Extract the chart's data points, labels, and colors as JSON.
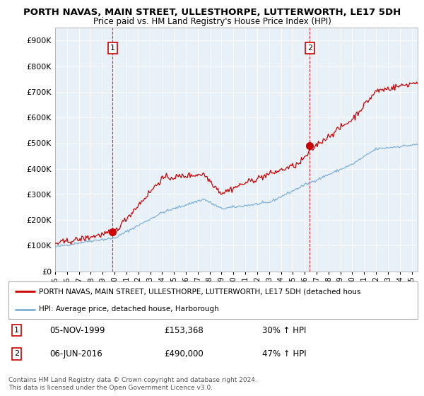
{
  "title": "PORTH NAVAS, MAIN STREET, ULLESTHORPE, LUTTERWORTH, LE17 5DH",
  "subtitle": "Price paid vs. HM Land Registry's House Price Index (HPI)",
  "ytick_values": [
    0,
    100000,
    200000,
    300000,
    400000,
    500000,
    600000,
    700000,
    800000,
    900000
  ],
  "ylim": [
    0,
    950000
  ],
  "legend_line1": "PORTH NAVAS, MAIN STREET, ULLESTHORPE, LUTTERWORTH, LE17 5DH (detached hous",
  "legend_line2": "HPI: Average price, detached house, Harborough",
  "annotation1_date": "05-NOV-1999",
  "annotation1_price": "£153,368",
  "annotation1_hpi": "30% ↑ HPI",
  "annotation2_date": "06-JUN-2016",
  "annotation2_price": "£490,000",
  "annotation2_hpi": "47% ↑ HPI",
  "footer": "Contains HM Land Registry data © Crown copyright and database right 2024.\nThis data is licensed under the Open Government Licence v3.0.",
  "red_color": "#cc0000",
  "blue_color": "#7fb0d8",
  "chart_bg": "#e8f0f8",
  "grid_color": "#ffffff",
  "sale1_x": 1999.84,
  "sale1_y": 153368,
  "sale2_x": 2016.43,
  "sale2_y": 490000,
  "xmin": 1995.0,
  "xmax": 2025.5,
  "xticks": [
    1995,
    1996,
    1997,
    1998,
    1999,
    2000,
    2001,
    2002,
    2003,
    2004,
    2005,
    2006,
    2007,
    2008,
    2009,
    2010,
    2011,
    2012,
    2013,
    2014,
    2015,
    2016,
    2017,
    2018,
    2019,
    2020,
    2021,
    2022,
    2023,
    2024,
    2025
  ]
}
